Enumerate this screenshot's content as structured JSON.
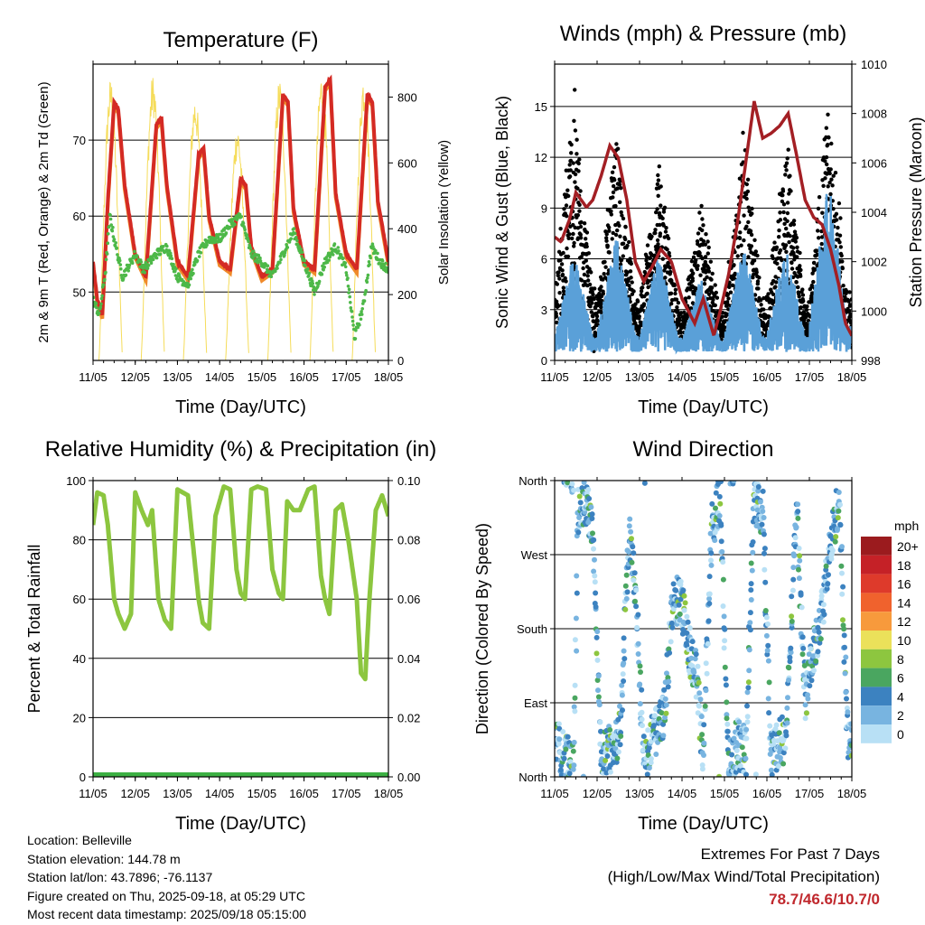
{
  "chart_data": [
    {
      "type": "line",
      "title": "Temperature (F)",
      "xlabel": "Time (Day/UTC)",
      "ylabel": "2m & 9m T (Red, Orange) & 2m Td (Green)",
      "ylabel_right": "Solar Insolation (Yellow)",
      "x_ticks": [
        "11/05",
        "12/05",
        "13/05",
        "14/05",
        "15/05",
        "16/05",
        "17/05",
        "18/05"
      ],
      "xlim": [
        0,
        7
      ],
      "ylim": [
        41,
        80
      ],
      "y_ticks": [
        50,
        60,
        70
      ],
      "ylim_right": [
        0,
        900
      ],
      "y_ticks_right": [
        0,
        200,
        400,
        600,
        800
      ],
      "grid": "horizontal",
      "colors": {
        "t2m": "#d42a24",
        "t9m": "#f08a2a",
        "td2m": "#4db848",
        "solar": "#f5dc5a"
      },
      "series": [
        {
          "key": "t2m",
          "x": [
            0,
            0.1,
            0.22,
            0.35,
            0.5,
            0.6,
            0.75,
            1.0,
            1.25,
            1.5,
            1.62,
            1.75,
            2.0,
            2.25,
            2.5,
            2.62,
            2.75,
            3.0,
            3.25,
            3.5,
            3.62,
            3.75,
            4.0,
            4.25,
            4.5,
            4.62,
            4.75,
            5.0,
            5.25,
            5.5,
            5.62,
            5.75,
            6.0,
            6.25,
            6.5,
            6.62,
            6.75,
            7.0
          ],
          "values": [
            54,
            49,
            47,
            62,
            75,
            74,
            64,
            55,
            52,
            72,
            73,
            64,
            54,
            52,
            68,
            69,
            60,
            54,
            53,
            65,
            64,
            56,
            52,
            53,
            76,
            75,
            61,
            54,
            53,
            77,
            78,
            63,
            55,
            53,
            76,
            75,
            62,
            54
          ]
        },
        {
          "key": "td2m",
          "x": [
            0,
            0.15,
            0.3,
            0.4,
            0.5,
            0.7,
            1.0,
            1.2,
            1.5,
            1.75,
            2.0,
            2.25,
            2.5,
            2.75,
            3.0,
            3.25,
            3.5,
            3.75,
            4.0,
            4.25,
            4.5,
            4.75,
            5.0,
            5.25,
            5.5,
            5.75,
            6.0,
            6.2,
            6.4,
            6.6,
            6.8,
            7.0
          ],
          "values": [
            49,
            47,
            53,
            60,
            57,
            52,
            55,
            53,
            55,
            56,
            52,
            51,
            55,
            57,
            57,
            59,
            60,
            55,
            54,
            52,
            55,
            58,
            54,
            50,
            54,
            56,
            53,
            44,
            48,
            56,
            54,
            53
          ]
        },
        {
          "key": "solar",
          "x": [
            0.42,
            1.42,
            2.42,
            3.42,
            4.42,
            5.42,
            6.42
          ],
          "values": [
            860,
            870,
            810,
            720,
            860,
            880,
            880
          ]
        }
      ]
    },
    {
      "type": "scatter",
      "title": "Winds (mph) & Pressure (mb)",
      "xlabel": "Time (Day/UTC)",
      "ylabel": "Sonic Wind & Gust (Blue, Black)",
      "ylabel_right": "Station Pressure (Maroon)",
      "x_ticks": [
        "11/05",
        "12/05",
        "13/05",
        "14/05",
        "15/05",
        "16/05",
        "17/05",
        "18/05"
      ],
      "xlim": [
        0,
        7
      ],
      "ylim": [
        0,
        17.5
      ],
      "y_ticks": [
        0,
        3,
        6,
        9,
        12,
        15
      ],
      "ylim_right": [
        998,
        1010
      ],
      "y_ticks_right": [
        998,
        1000,
        1002,
        1004,
        1006,
        1008,
        1010
      ],
      "grid": "horizontal",
      "colors": {
        "wind": "#5aa0d8",
        "gust": "#000000",
        "pressure": "#a31f24"
      },
      "series": [
        {
          "key": "pressure",
          "x": [
            0,
            0.15,
            0.35,
            0.5,
            0.75,
            0.9,
            1.1,
            1.3,
            1.5,
            1.7,
            1.9,
            2.1,
            2.3,
            2.5,
            2.75,
            3.0,
            3.3,
            3.5,
            3.75,
            3.9,
            4.1,
            4.3,
            4.5,
            4.7,
            4.9,
            5.1,
            5.3,
            5.5,
            5.7,
            5.9,
            6.1,
            6.3,
            6.5,
            6.7,
            6.85,
            7.0
          ],
          "values": [
            1003,
            1002.8,
            1003.7,
            1004.8,
            1004.2,
            1004.5,
            1005.5,
            1006.7,
            1006.2,
            1004.5,
            1002,
            1001.2,
            1001.8,
            1002.5,
            1002,
            1000.5,
            999.5,
            1000.5,
            999,
            1000,
            1001.5,
            1003.5,
            1006,
            1008.5,
            1007,
            1007.2,
            1007.5,
            1008,
            1006.3,
            1004.5,
            1003.8,
            1003.5,
            1002.5,
            1001,
            999.5,
            999
          ]
        },
        {
          "key": "wind_peaks",
          "x": [
            0.4,
            1.4,
            2.4,
            3.4,
            4.4,
            5.4,
            6.4
          ],
          "values": [
            6,
            7,
            6,
            4.5,
            6.5,
            6.5,
            10.5
          ]
        },
        {
          "key": "gust_peaks",
          "x": [
            0.5,
            1.4,
            2.4,
            3.4,
            4.4,
            5.4,
            6.4
          ],
          "values": [
            15.3,
            12.5,
            11,
            8,
            12.5,
            12.5,
            14.5
          ]
        }
      ]
    },
    {
      "type": "line",
      "title": "Relative Humidity (%) & Precipitation (in)",
      "xlabel": "Time (Day/UTC)",
      "ylabel": "Percent & Total Rainfall",
      "x_ticks": [
        "11/05",
        "12/05",
        "13/05",
        "14/05",
        "15/05",
        "16/05",
        "17/05",
        "18/05"
      ],
      "xlim": [
        0,
        7
      ],
      "ylim": [
        0,
        100
      ],
      "y_ticks": [
        0,
        20,
        40,
        60,
        80,
        100
      ],
      "ylim_right": [
        0,
        0.1
      ],
      "y_ticks_right": [
        "0.00",
        "0.02",
        "0.04",
        "0.06",
        "0.08",
        "0.10"
      ],
      "grid": "horizontal",
      "colors": {
        "rh": "#8cc63f",
        "precip": "#3cb043"
      },
      "series": [
        {
          "key": "rh",
          "x": [
            0,
            0.1,
            0.25,
            0.35,
            0.5,
            0.6,
            0.75,
            0.9,
            1.0,
            1.15,
            1.3,
            1.4,
            1.55,
            1.7,
            1.85,
            2.0,
            2.25,
            2.5,
            2.6,
            2.75,
            2.9,
            3.1,
            3.25,
            3.4,
            3.5,
            3.6,
            3.75,
            3.9,
            4.1,
            4.25,
            4.4,
            4.5,
            4.6,
            4.75,
            4.9,
            5.1,
            5.25,
            5.4,
            5.5,
            5.6,
            5.75,
            5.9,
            6.05,
            6.25,
            6.35,
            6.45,
            6.55,
            6.7,
            6.85,
            7.0
          ],
          "values": [
            85,
            96,
            95,
            85,
            60,
            55,
            50,
            55,
            96,
            90,
            85,
            90,
            60,
            53,
            50,
            97,
            95,
            60,
            52,
            50,
            88,
            98,
            97,
            70,
            62,
            60,
            97,
            98,
            97,
            70,
            62,
            60,
            93,
            90,
            90,
            97,
            98,
            68,
            60,
            55,
            90,
            92,
            80,
            60,
            35,
            33,
            60,
            90,
            95,
            88
          ]
        },
        {
          "key": "precip",
          "x": [
            0,
            7
          ],
          "values": [
            0,
            0
          ]
        }
      ]
    },
    {
      "type": "scatter",
      "title": "Wind Direction",
      "xlabel": "Time (Day/UTC)",
      "ylabel": "Direction (Colored By Speed)",
      "x_ticks": [
        "11/05",
        "12/05",
        "13/05",
        "14/05",
        "15/05",
        "16/05",
        "17/05",
        "18/05"
      ],
      "xlim": [
        0,
        7
      ],
      "ylim": [
        0,
        360
      ],
      "y_ticks": [
        "North",
        "East",
        "South",
        "West",
        "North"
      ],
      "grid": "horizontal",
      "legend": {
        "title": "mph",
        "placement": "right",
        "labels": [
          "20+",
          "18",
          "16",
          "14",
          "12",
          "10",
          "8",
          "6",
          "4",
          "2",
          "0"
        ],
        "colors": [
          "#9b1b1e",
          "#c52127",
          "#de3a2b",
          "#f0622d",
          "#f79a3c",
          "#ebe15a",
          "#8dc63f",
          "#4aa660",
          "#3c82c0",
          "#78b4e0",
          "#b8e0f5"
        ]
      },
      "series": [
        {
          "key": "direction_trend",
          "x": [
            0,
            0.3,
            0.45,
            0.55,
            0.7,
            0.9,
            1.1,
            1.25,
            1.4,
            1.55,
            1.75,
            1.9,
            2.1,
            2.3,
            2.45,
            2.6,
            2.75,
            2.95,
            3.2,
            3.35,
            3.5,
            3.7,
            3.9,
            4.1,
            4.3,
            4.5,
            4.7,
            4.9,
            5.1,
            5.3,
            5.45,
            5.7,
            5.9,
            6.1,
            6.3,
            6.5,
            6.7,
            6.9
          ],
          "values": [
            45,
            20,
            10,
            320,
            340,
            300,
            20,
            30,
            40,
            60,
            290,
            230,
            20,
            45,
            60,
            80,
            200,
            220,
            150,
            120,
            30,
            300,
            340,
            10,
            40,
            30,
            340,
            320,
            30,
            40,
            50,
            330,
            100,
            150,
            200,
            280,
            340,
            50
          ]
        }
      ]
    }
  ],
  "footer": {
    "location": "Location: Belleville",
    "elevation": "Station elevation: 144.78 m",
    "latlon": "Station lat/lon: 43.7896; -76.1137",
    "created": "Figure created on Thu, 2025-09-18, at 05:29 UTC",
    "recent": "Most recent data timestamp: 2025/09/18 05:15:00"
  },
  "extremes": {
    "line1": "Extremes For Past 7 Days",
    "line2": "(High/Low/Max Wind/Total Precipitation)",
    "values": "78.7/46.6/10.7/0"
  }
}
